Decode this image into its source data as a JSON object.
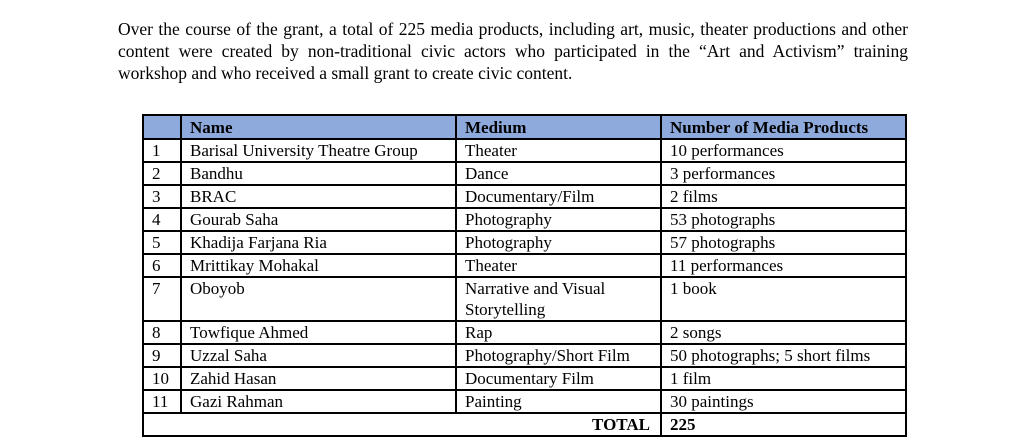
{
  "page": {
    "paragraph": "Over the course of the grant, a total of 225 media products, including art, music, theater productions and other content were created by non-traditional civic actors who participated in the “Art and Activism” training workshop and who received a small grant to create civic content."
  },
  "colors": {
    "header_bg": "#8EA9DB",
    "border": "#000000"
  },
  "table": {
    "headers": {
      "num": "",
      "name": "Name",
      "medium": "Medium",
      "products": "Number of Media Products"
    },
    "rows": [
      {
        "num": "1",
        "name": "Barisal University Theatre Group",
        "medium": "Theater",
        "products": "10 performances"
      },
      {
        "num": "2",
        "name": "Bandhu",
        "medium": "Dance",
        "products": "3 performances"
      },
      {
        "num": "3",
        "name": "BRAC",
        "medium": "Documentary/Film",
        "products": "2 films"
      },
      {
        "num": "4",
        "name": "Gourab Saha",
        "medium": "Photography",
        "products": "53 photographs"
      },
      {
        "num": "5",
        "name": "Khadija Farjana Ria",
        "medium": "Photography",
        "products": "57 photographs"
      },
      {
        "num": "6",
        "name": "Mrittikay Mohakal",
        "medium": "Theater",
        "products": "11 performances"
      },
      {
        "num": "7",
        "name": "Oboyob",
        "medium": "Narrative and Visual Storytelling",
        "products": "1 book"
      },
      {
        "num": "8",
        "name": "Towfique Ahmed",
        "medium": "Rap",
        "products": "2 songs"
      },
      {
        "num": "9",
        "name": "Uzzal Saha",
        "medium": "Photography/Short Film",
        "products": "50 photographs; 5 short films"
      },
      {
        "num": "10",
        "name": "Zahid Hasan",
        "medium": "Documentary Film",
        "products": "1 film"
      },
      {
        "num": "11",
        "name": "Gazi Rahman",
        "medium": "Painting",
        "products": "30 paintings"
      }
    ],
    "total_label": "TOTAL",
    "total_value": "225"
  }
}
